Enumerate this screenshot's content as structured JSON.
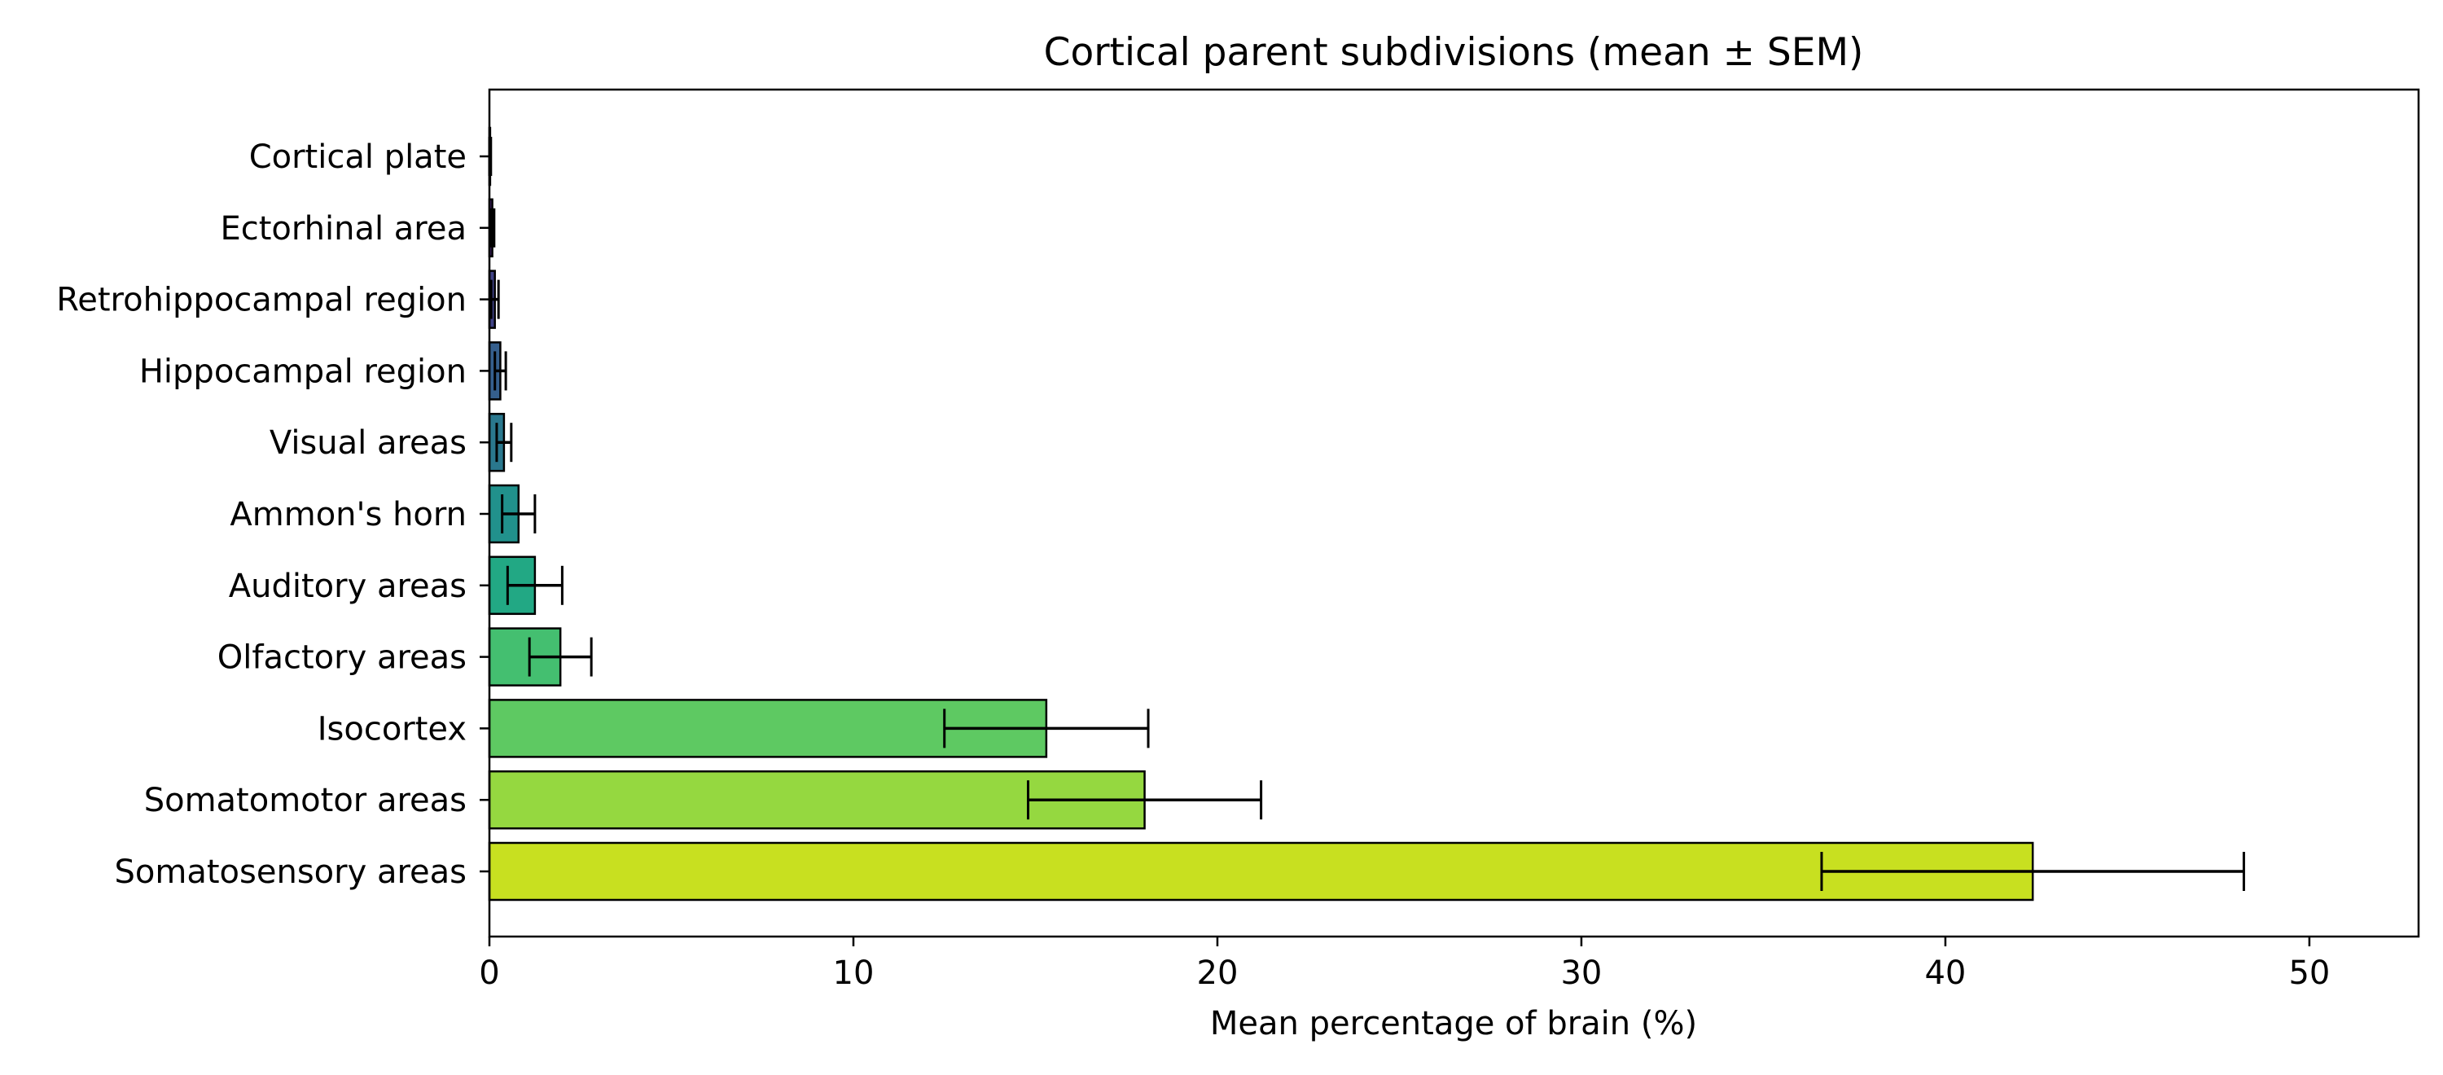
{
  "chart_data": {
    "type": "bar",
    "orientation": "horizontal",
    "title": "Cortical parent subdivisions (mean ± SEM)",
    "xlabel": "Mean percentage of brain (%)",
    "ylabel": "",
    "xlim": [
      0,
      53
    ],
    "xticks": [
      0,
      10,
      20,
      30,
      40,
      50
    ],
    "grid": false,
    "categories": [
      "Cortical plate",
      "Ectorhinal area",
      "Retrohippocampal region",
      "Hippocampal region",
      "Visual areas",
      "Ammon's horn",
      "Auditory areas",
      "Olfactory areas",
      "Isocortex",
      "Somatomotor areas",
      "Somatosensory areas"
    ],
    "values": [
      0.02,
      0.08,
      0.15,
      0.3,
      0.4,
      0.8,
      1.25,
      1.95,
      15.3,
      18.0,
      42.4
    ],
    "errors": [
      0.02,
      0.05,
      0.1,
      0.15,
      0.2,
      0.45,
      0.75,
      0.85,
      2.8,
      3.2,
      5.8
    ],
    "colors": [
      "#440154",
      "#482475",
      "#414487",
      "#355f8d",
      "#2a788e",
      "#21918c",
      "#22a884",
      "#44bf70",
      "#5ec962",
      "#95d840",
      "#c8e020"
    ]
  }
}
